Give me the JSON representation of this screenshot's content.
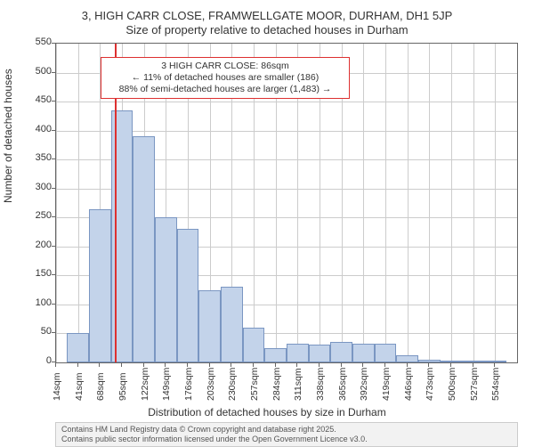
{
  "title_main": "3, HIGH CARR CLOSE, FRAMWELLGATE MOOR, DURHAM, DH1 5JP",
  "title_sub": "Size of property relative to detached houses in Durham",
  "ylabel": "Number of detached houses",
  "xlabel": "Distribution of detached houses by size in Durham",
  "chart": {
    "type": "histogram",
    "ylim": [
      0,
      550
    ],
    "ytick_step": 50,
    "background_color": "#ffffff",
    "grid_color": "#cccccc",
    "axis_color": "#666666",
    "bar_fill": "#c3d3ea",
    "bar_border": "#7a96c2",
    "vline_color": "#dd3030",
    "vline_x": 86,
    "x_start": 14,
    "x_step": 27,
    "x_unit": "sqm",
    "values": [
      0,
      50,
      265,
      435,
      390,
      250,
      230,
      125,
      130,
      60,
      25,
      32,
      30,
      35,
      32,
      33,
      12,
      5,
      3,
      2,
      1
    ],
    "bar_width_ratio": 1.0,
    "tick_fontsize": 10.5,
    "label_fontsize": 12,
    "title_fontsize": 13
  },
  "callout": {
    "line1": "3 HIGH CARR CLOSE: 86sqm",
    "line2": "← 11% of detached houses are smaller (186)",
    "line3": "88% of semi-detached houses are larger (1,483) →",
    "border_color": "#dd3030"
  },
  "footer": {
    "line1": "Contains HM Land Registry data © Crown copyright and database right 2025.",
    "line2": "Contains public sector information licensed under the Open Government Licence v3.0."
  }
}
